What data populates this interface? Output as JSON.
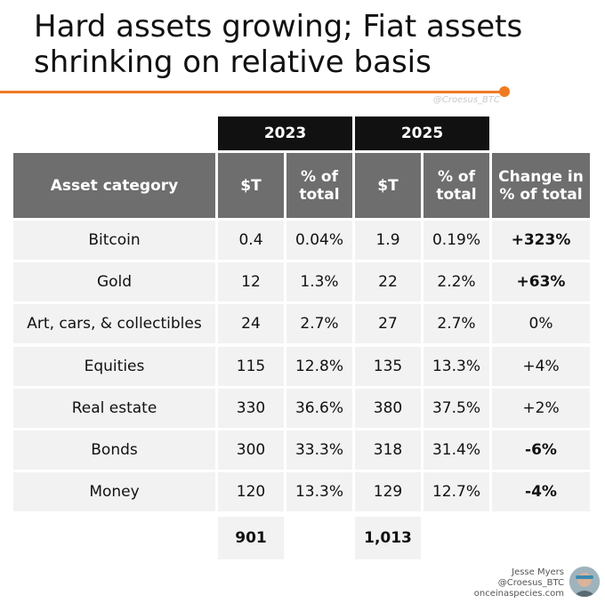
{
  "title": {
    "line1": "Hard assets growing; Fiat assets",
    "line2": "shrinking on relative basis"
  },
  "watermark": "@Croesus_BTC",
  "credit": {
    "name": "Jesse Myers",
    "handle": "@Croesus_BTC",
    "site": "onceinaspecies.com"
  },
  "colors": {
    "accent": "#f07a22",
    "year_header": "#111111",
    "column_header": "#6e6e6e",
    "row_fill": "#f2f2f2"
  },
  "chart_data": {
    "type": "table",
    "year_headers": [
      "2023",
      "2025"
    ],
    "columns": [
      "Asset category",
      "$T",
      "% of total",
      "$T",
      "% of total",
      "Change in % of total"
    ],
    "rows": [
      {
        "category": "Bitcoin",
        "t2023": "0.4",
        "p2023": "0.04%",
        "t2025": "1.9",
        "p2025": "0.19%",
        "change": "+323%",
        "change_bold": true
      },
      {
        "category": "Gold",
        "t2023": "12",
        "p2023": "1.3%",
        "t2025": "22",
        "p2025": "2.2%",
        "change": "+63%",
        "change_bold": true
      },
      {
        "category": "Art, cars, & collectibles",
        "t2023": "24",
        "p2023": "2.7%",
        "t2025": "27",
        "p2025": "2.7%",
        "change": "0%",
        "change_bold": false
      },
      {
        "category": "Equities",
        "t2023": "115",
        "p2023": "12.8%",
        "t2025": "135",
        "p2025": "13.3%",
        "change": "+4%",
        "change_bold": false
      },
      {
        "category": "Real estate",
        "t2023": "330",
        "p2023": "36.6%",
        "t2025": "380",
        "p2025": "37.5%",
        "change": "+2%",
        "change_bold": false
      },
      {
        "category": "Bonds",
        "t2023": "300",
        "p2023": "33.3%",
        "t2025": "318",
        "p2025": "31.4%",
        "change": "-6%",
        "change_bold": true
      },
      {
        "category": "Money",
        "t2023": "120",
        "p2023": "13.3%",
        "t2025": "129",
        "p2025": "12.7%",
        "change": "-4%",
        "change_bold": true
      }
    ],
    "totals": {
      "t2023": "901",
      "t2025": "1,013"
    }
  }
}
